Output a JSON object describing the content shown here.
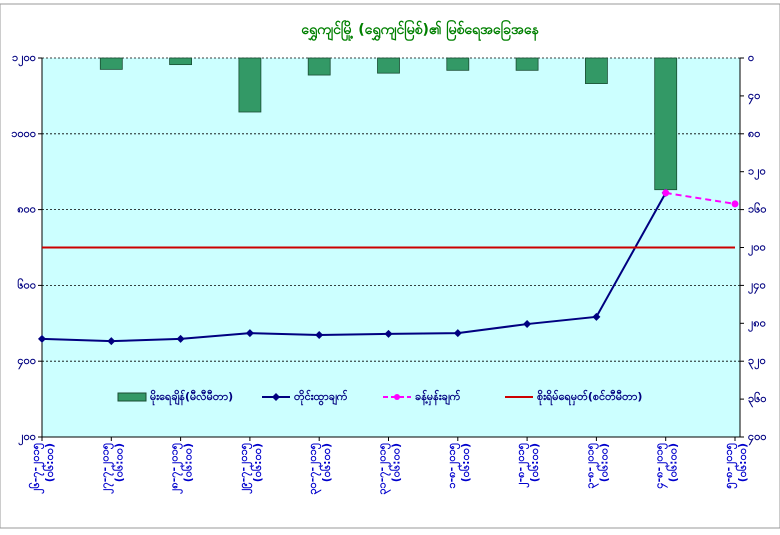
{
  "chart_data": {
    "type": "combo",
    "title": "ရွှေကျင်မြို့ (ရွှေကျင်မြစ်)၏ မြစ်ရေအခြေအနေ",
    "categories": [
      "၂၆-၇-၂၀၁၅",
      "၂၇-၇-၂၀၁၅",
      "၂၈-၇-၂၀၁၅",
      "၂၉-၇-၂၀၁၅",
      "၃၀-၇-၂၀၁၅",
      "၃၁-၇-၂၀၁၅",
      "၁-၈-၂၀၁၅",
      "၂-၈-၂၀၁၅",
      "၃-၈-၂၀၁၅",
      "၄-၈-၂၀၁၅",
      "၅-၈-၂၀၁၅"
    ],
    "times": [
      "(၀၆:၀၀)",
      "(၀၆:၀၀)",
      "(၀၆:၀၀)",
      "(၀၆:၀၀)",
      "(၀၆:၀၀)",
      "(၀၆:၀၀)",
      "(၀၆:၀၀)",
      "(၀၆:၀၀)",
      "(၀၆:၀၀)",
      "(၀၆:၀၀)",
      "(၀၆:၀၀)"
    ],
    "series": [
      {
        "name": "မိုးရေချိန်(မီလီမီတာ)",
        "type": "bar",
        "axis": "y2",
        "color": "#339966",
        "values": [
          0,
          12,
          7,
          57,
          18,
          16,
          13,
          13,
          27,
          139,
          0
        ]
      },
      {
        "name": "တိုင်းထွာချက်",
        "type": "line",
        "color": "#000080",
        "marker": "diamond",
        "values": [
          459,
          453,
          459,
          474,
          469,
          472,
          474,
          498,
          517,
          844,
          null
        ]
      },
      {
        "name": "ခန့်မှန်းချက်",
        "type": "line",
        "color": "#ff00ff",
        "dashed": true,
        "marker": "circle",
        "values": [
          null,
          null,
          null,
          null,
          null,
          null,
          null,
          null,
          null,
          844,
          815
        ]
      },
      {
        "name": "စိုးရိမ်ရေမှတ်(စင်တီမီတာ)",
        "type": "line",
        "color": "#cc0000",
        "values": [
          700,
          700,
          700,
          700,
          700,
          700,
          700,
          700,
          700,
          700,
          700
        ]
      }
    ],
    "ylim": [
      200,
      1200
    ],
    "yticks": [
      {
        "value": 200,
        "label": "၂၀၀"
      },
      {
        "value": 400,
        "label": "၄၀၀"
      },
      {
        "value": 600,
        "label": "၆၀၀"
      },
      {
        "value": 800,
        "label": "၈၀၀"
      },
      {
        "value": 1000,
        "label": "၁၀၀၀"
      },
      {
        "value": 1200,
        "label": "၁၂၀၀"
      }
    ],
    "y2lim": [
      0,
      400
    ],
    "y2_inverted": true,
    "y2ticks": [
      {
        "value": 0,
        "label": "၀"
      },
      {
        "value": 40,
        "label": "၄၀"
      },
      {
        "value": 80,
        "label": "၈၀"
      },
      {
        "value": 120,
        "label": "၁၂၀"
      },
      {
        "value": 160,
        "label": "၁၆၀"
      },
      {
        "value": 200,
        "label": "၂၀၀"
      },
      {
        "value": 240,
        "label": "၂၄၀"
      },
      {
        "value": 280,
        "label": "၂၈၀"
      },
      {
        "value": 320,
        "label": "၃၂၀"
      },
      {
        "value": 360,
        "label": "၃၆၀"
      },
      {
        "value": 400,
        "label": "၄၀၀"
      }
    ],
    "grid": true
  }
}
